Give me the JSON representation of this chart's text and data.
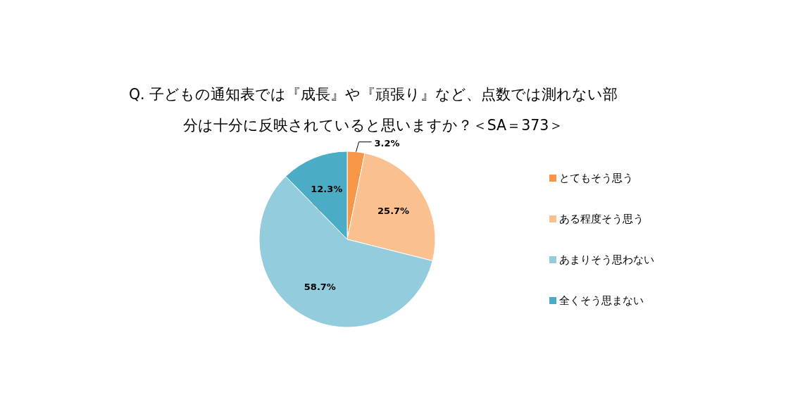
{
  "chart_data": {
    "type": "pie",
    "title": "Q. 子どもの通知表では『成長』や『頑張り』など、点数では測れない部分は十分に反映されていると思いますか？＜SA＝373＞",
    "categories": [
      "とてもそう思う",
      "ある程度そう思う",
      "あまりそう思わない",
      "全くそう思まない"
    ],
    "values": [
      3.2,
      25.7,
      58.7,
      12.3
    ],
    "value_labels": [
      "3.2%",
      "25.7%",
      "58.7%",
      "12.3%"
    ],
    "colors": [
      "#f79646",
      "#fac090",
      "#93cddd",
      "#4bacc6"
    ],
    "legend": "right"
  }
}
